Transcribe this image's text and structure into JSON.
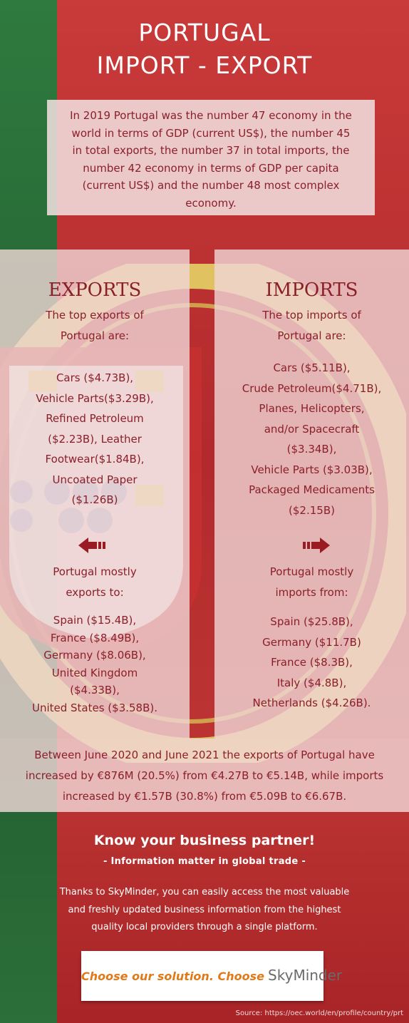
{
  "title": {
    "line1": "PORTUGAL",
    "line2": "IMPORT - EXPORT"
  },
  "intro": {
    "lines": [
      "In 2019 Portugal was the number 47 economy in the",
      "world in terms of GDP (current US$),  the number 45",
      "in total exports, the number 37 in total imports, the",
      "number 42 economy in terms of GDP per capita",
      "(current US$) and the number 48 most complex",
      "economy."
    ]
  },
  "exports": {
    "heading": "EXPORTS",
    "subheading_lines": [
      "The top exports of",
      "Portugal are:"
    ],
    "products_lines": [
      "Cars ($4.73B),",
      "Vehicle Parts($3.29B),",
      "Refined Petroleum",
      "($2.23B), Leather",
      "Footwear($1.84B),",
      "Uncoated Paper",
      "($1.26B)"
    ],
    "destinations_heading_lines": [
      "Portugal mostly",
      "exports to:"
    ],
    "destinations_lines": [
      "Spain ($15.4B),",
      "France ($8.49B),",
      "Germany ($8.06B),",
      "United Kingdom",
      "($4.33B),",
      "United States ($3.58B)."
    ]
  },
  "imports": {
    "heading": "IMPORTS",
    "subheading_lines": [
      "The top imports of",
      "Portugal are:"
    ],
    "products_lines": [
      "Cars ($5.11B),",
      "Crude Petroleum($4.71B),",
      "Planes, Helicopters,",
      "and/or Spacecraft",
      "($3.34B),",
      "Vehicle Parts ($3.03B),",
      "Packaged Medicaments",
      "($2.15B)"
    ],
    "origins_heading_lines": [
      "Portugal mostly",
      "imports from:"
    ],
    "origins_lines": [
      "Spain ($25.8B),",
      "Germany ($11.7B)",
      "France ($8.3B),",
      "Italy ($4.8B),",
      "Netherlands ($4.26B)."
    ]
  },
  "summary": {
    "lines": [
      "Between June 2020 and June 2021 the exports of Portugal have",
      "increased by €876M (20.5%) from €4.27B to €5.14B, while imports",
      "increased by €1.57B (30.8%) from €5.09B to €6.67B."
    ]
  },
  "cta": {
    "title": "Know your business partner!",
    "subtitle": "- Information matter in global trade -",
    "body_lines": [
      "Thanks to SkyMinder, you can easily access the most valuable",
      "and freshly updated business information from the highest",
      "quality local providers through a single platform."
    ]
  },
  "logo": {
    "slogan": "Choose our solution. Choose",
    "brand": "SkyMinder"
  },
  "source": "Source: https://oec.world/en/profile/country/prt",
  "colors": {
    "flag_green": "#2f7a3f",
    "flag_red": "#b22a2c",
    "text_dark_red": "#8a1f2a",
    "arrow_red": "#9b1b23",
    "logo_orange": "#e07a19",
    "emblem_yellow": "#e7dc6a"
  },
  "icons": {
    "exports_arrow": "arrow-left-icon",
    "imports_arrow": "arrow-right-icon",
    "background_emblem": "portuguese-armillary-sphere-emblem"
  }
}
